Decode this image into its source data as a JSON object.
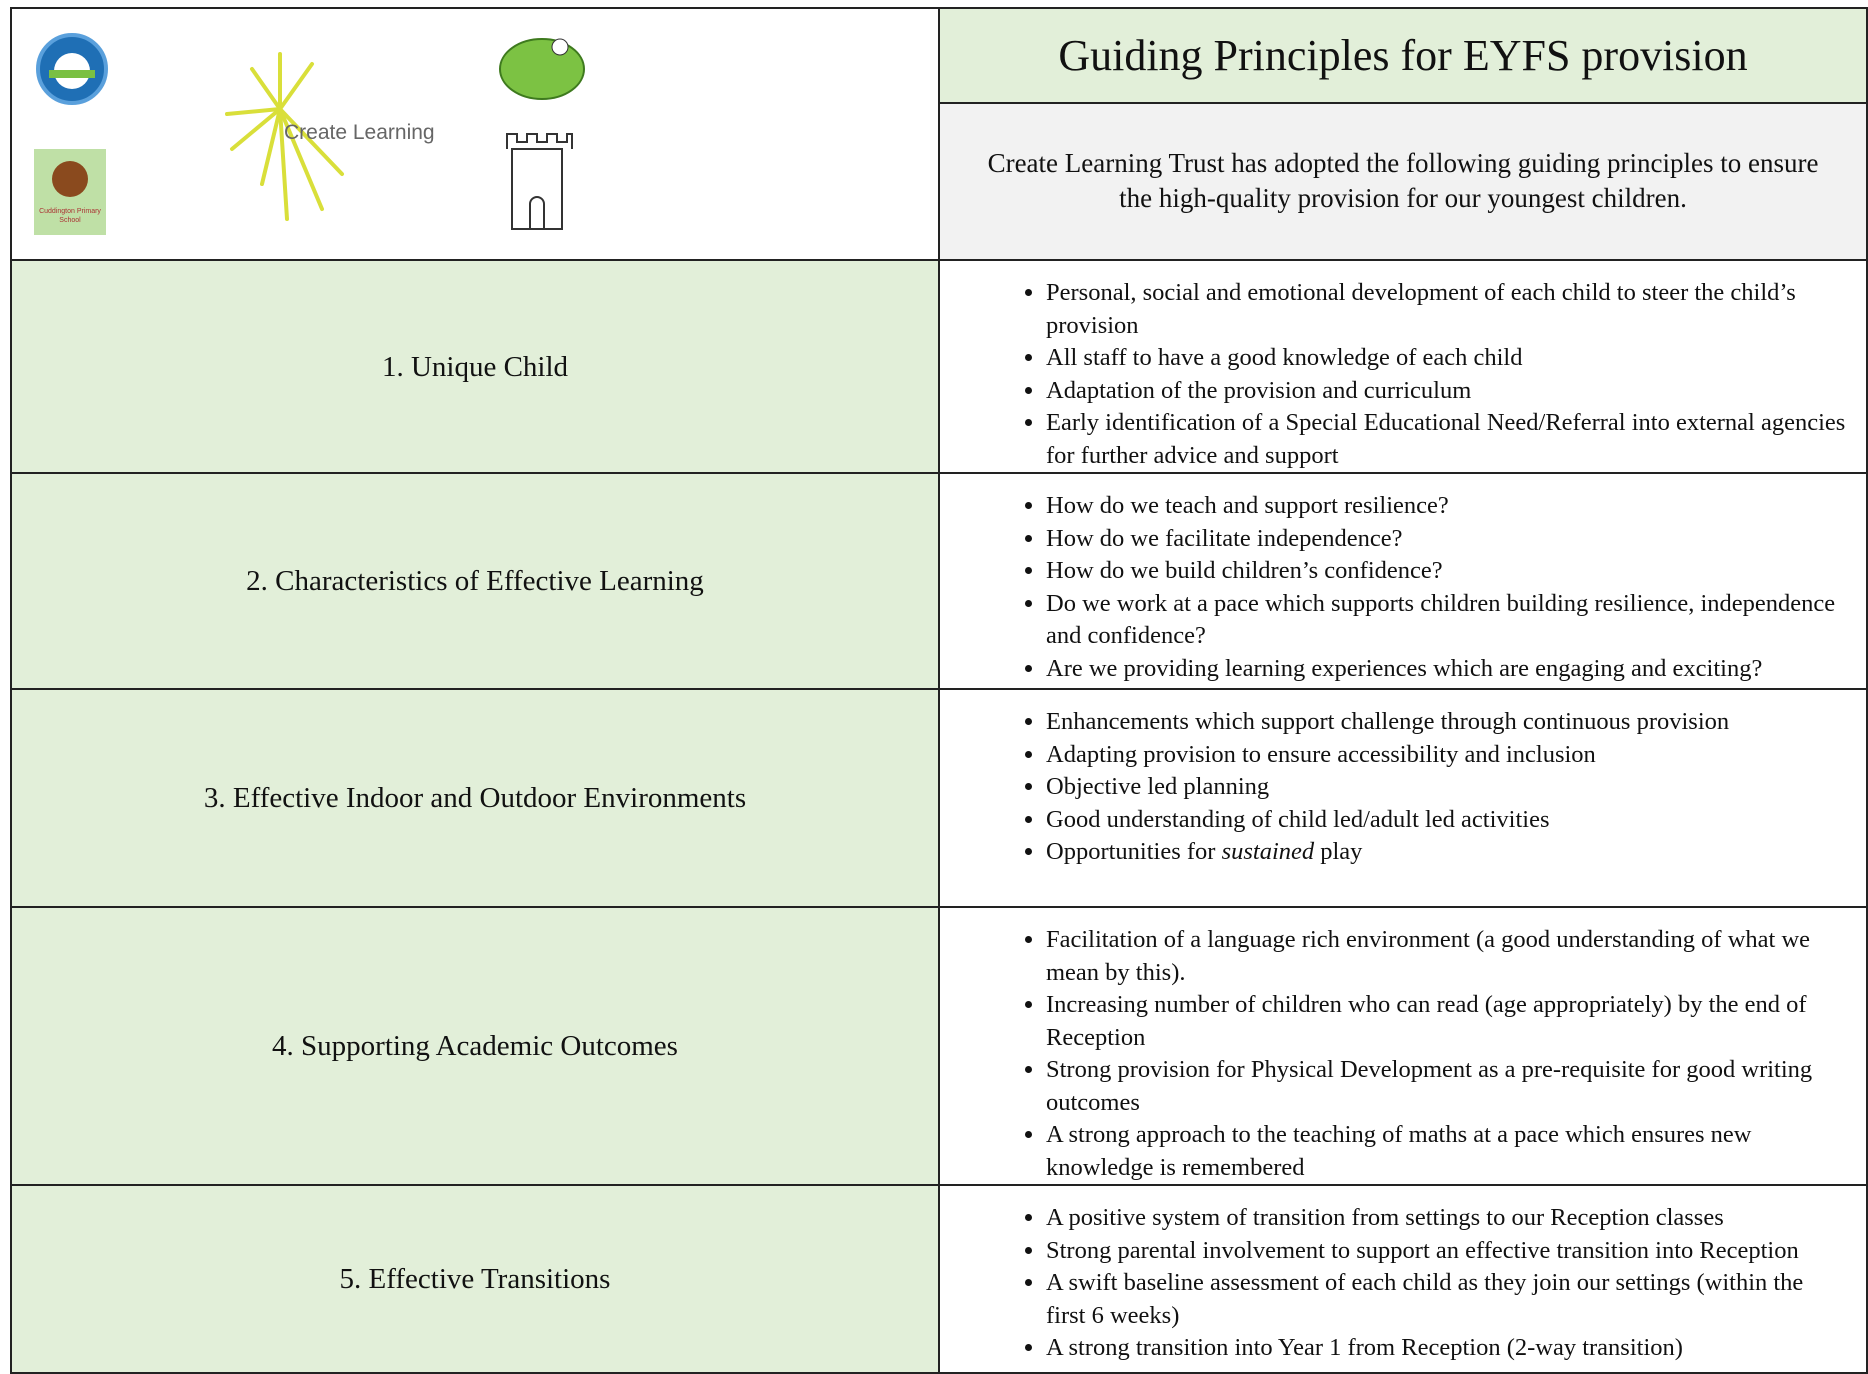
{
  "header": {
    "title": "Guiding Principles for EYFS provision",
    "intro": "Create Learning Trust has adopted the following guiding principles to ensure the high-quality provision for our youngest children.",
    "logos": {
      "create_learning": "Create Learning",
      "cuddington": "Cuddington Primary School"
    }
  },
  "rows": [
    {
      "label": "1. Unique Child",
      "bullets": [
        "Personal, social and emotional development of each child to steer the child’s provision",
        "All staff to have a good knowledge of each child",
        "Adaptation of the provision and curriculum",
        "Early identification of a Special Educational Need/Referral into external agencies for further advice and support"
      ]
    },
    {
      "label": "2. Characteristics of Effective Learning",
      "bullets": [
        "How do we teach and support resilience?",
        "How do we facilitate independence?",
        "How do we build children’s confidence?",
        "Do we work at a pace which supports children building resilience, independence and confidence?",
        "Are we providing learning experiences which are engaging and exciting?"
      ]
    },
    {
      "label": "3. Effective Indoor and Outdoor Environments",
      "bullets": [
        "Enhancements which support challenge through continuous provision",
        "Adapting provision to ensure accessibility and inclusion",
        "Objective led planning",
        "Good understanding of child led/adult led activities",
        [
          "Opportunities for ",
          {
            "em": "sustained"
          },
          " play"
        ]
      ]
    },
    {
      "label": "4. Supporting Academic Outcomes",
      "bullets": [
        "Facilitation of a language rich environment (a good understanding of what we mean by this).",
        "Increasing number of children who can read (age appropriately) by the end of Reception",
        "Strong provision for Physical Development as a pre-requisite for good writing outcomes",
        "A strong approach to the teaching of maths at a pace which ensures new knowledge is remembered"
      ]
    },
    {
      "label": "5. Effective Transitions",
      "bullets": [
        "A positive system of transition from settings to our Reception classes",
        "Strong parental involvement to support an effective transition into Reception",
        "A swift baseline assessment of each child as they join our settings (within the first 6 weeks)",
        "A strong transition into Year 1 from Reception (2-way transition)"
      ]
    }
  ]
}
